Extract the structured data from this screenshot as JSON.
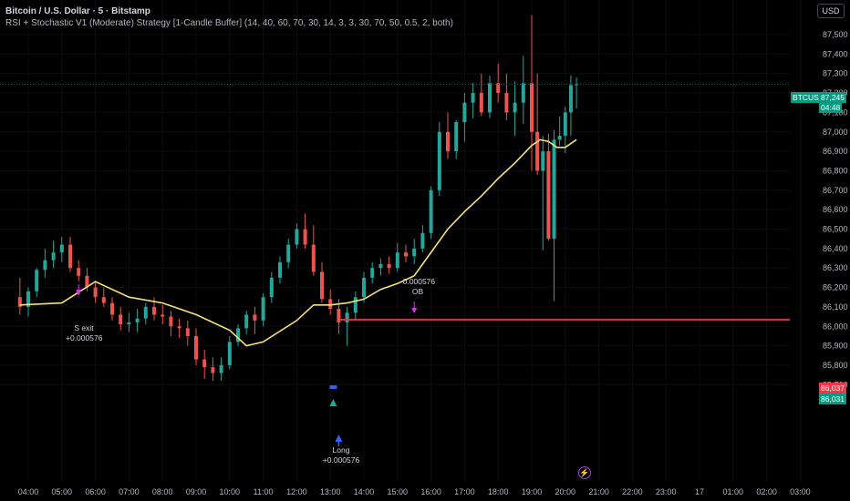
{
  "header": {
    "symbol_title": "Bitcoin / U.S. Dollar · 5 · Bitstamp",
    "strategy_line": "RSI + Stochastic V1 (Moderate) Strategy [1-Candle Buffer] (14, 40, 60, 70, 30, 14, 3, 3, 30, 70, 50, 0.5, 2, both)"
  },
  "currency_label": "USD",
  "price_axis": [
    "87,500",
    "87,400",
    "87,300",
    "87,200",
    "87,100",
    "87,000",
    "86,900",
    "86,800",
    "86,700",
    "86,600",
    "86,500",
    "86,400",
    "86,300",
    "86,200",
    "86,100",
    "86,000",
    "85,900",
    "85,800",
    "85,700"
  ],
  "time_axis": [
    "04:00",
    "05:00",
    "06:00",
    "07:00",
    "08:00",
    "09:00",
    "10:00",
    "11:00",
    "12:00",
    "13:00",
    "14:00",
    "15:00",
    "16:00",
    "17:00",
    "18:00",
    "19:00",
    "20:00",
    "21:00",
    "22:00",
    "23:00",
    "17",
    "01:00",
    "02:00",
    "03:00"
  ],
  "tags": {
    "symbol": "BTCUSD",
    "last_price": "87,245",
    "countdown": "04:48",
    "line_price_red": "86,037",
    "line_price_green": "86,031"
  },
  "annotations": {
    "short_exit_label": "S exit",
    "short_exit_value": "+0.000576",
    "ob_value": "-0.000576",
    "ob_label": "OB",
    "long_label": "Long",
    "long_value": "+0.000576"
  },
  "colors": {
    "background": "#000000",
    "up_candle": "#26a69a",
    "down_candle": "#ef5350",
    "moving_average": "#f7e27a",
    "last_price_tag": "#089981",
    "price_line_red": "#f23645",
    "price_line_green": "#089981",
    "marker_magenta": "#d53ae0",
    "marker_blue": "#2962ff"
  },
  "icons": {
    "short_marker": "arrow-down-icon",
    "long_marker": "arrow-up-icon",
    "entry_marker": "triangle-up-icon",
    "replay": "lightning-icon"
  },
  "chart_data": {
    "type": "candlestick",
    "x": [
      "03:45",
      "04:00",
      "04:15",
      "04:30",
      "04:45",
      "05:00",
      "05:15",
      "05:30",
      "05:45",
      "06:00",
      "06:15",
      "06:30",
      "06:45",
      "07:00",
      "07:15",
      "07:30",
      "07:45",
      "08:00",
      "08:15",
      "08:30",
      "08:45",
      "09:00",
      "09:15",
      "09:30",
      "09:45",
      "10:00",
      "10:15",
      "10:30",
      "10:45",
      "11:00",
      "11:15",
      "11:30",
      "11:45",
      "12:00",
      "12:15",
      "12:30",
      "12:45",
      "13:00",
      "13:15",
      "13:30",
      "13:45",
      "14:00",
      "14:15",
      "14:30",
      "14:45",
      "15:00",
      "15:15",
      "15:30",
      "15:45",
      "16:00",
      "16:15",
      "16:30",
      "16:45",
      "17:00",
      "17:15",
      "17:30",
      "17:45",
      "18:00",
      "18:15",
      "18:30",
      "18:45",
      "19:00",
      "19:10",
      "19:20",
      "19:30",
      "19:40",
      "19:50",
      "20:00",
      "20:10",
      "20:20"
    ],
    "open": [
      86150,
      86100,
      86180,
      86290,
      86340,
      86380,
      86420,
      86300,
      86260,
      86200,
      86150,
      86120,
      86060,
      86010,
      86020,
      86040,
      86100,
      86060,
      86050,
      86000,
      85990,
      85950,
      85830,
      85790,
      85760,
      85800,
      85920,
      85990,
      86060,
      86030,
      86150,
      86250,
      86330,
      86420,
      86500,
      86420,
      86280,
      86140,
      86090,
      86020,
      86070,
      86150,
      86250,
      86300,
      86320,
      86300,
      86380,
      86360,
      86400,
      86480,
      86700,
      87000,
      86900,
      87050,
      87150,
      87200,
      87100,
      87250,
      87200,
      87100,
      87150,
      87250,
      87000,
      86800,
      86900,
      86450,
      86960,
      86980,
      87100,
      87240
    ],
    "high": [
      86250,
      86200,
      86300,
      86400,
      86440,
      86460,
      86460,
      86340,
      86300,
      86230,
      86200,
      86150,
      86100,
      86070,
      86090,
      86120,
      86150,
      86110,
      86080,
      86040,
      86030,
      85990,
      85880,
      85840,
      85840,
      85950,
      86010,
      86080,
      86100,
      86170,
      86280,
      86360,
      86450,
      86530,
      86580,
      86520,
      86330,
      86190,
      86140,
      86100,
      86180,
      86280,
      86330,
      86350,
      86360,
      86430,
      86420,
      86450,
      86520,
      86720,
      87050,
      87100,
      87060,
      87200,
      87250,
      87300,
      87290,
      87350,
      87300,
      87260,
      87390,
      87600,
      87300,
      86980,
      86990,
      87010,
      87080,
      87130,
      87290,
      87280
    ],
    "low": [
      86060,
      86050,
      86150,
      86250,
      86300,
      86330,
      86280,
      86230,
      86180,
      86120,
      86100,
      86030,
      85980,
      85970,
      85970,
      86010,
      86030,
      86010,
      85950,
      85940,
      85900,
      85800,
      85730,
      85720,
      85720,
      85780,
      85900,
      85960,
      85960,
      86000,
      86120,
      86220,
      86300,
      86400,
      86400,
      86260,
      86120,
      86060,
      85960,
      85900,
      86030,
      86120,
      86220,
      86260,
      86270,
      86280,
      86330,
      86320,
      86380,
      86450,
      86670,
      86860,
      86860,
      86950,
      87070,
      87080,
      87070,
      87150,
      87060,
      86980,
      87040,
      86800,
      86780,
      86390,
      86440,
      86130,
      86930,
      86890,
      86980,
      87120
    ],
    "close": [
      86100,
      86180,
      86290,
      86340,
      86380,
      86420,
      86300,
      86260,
      86200,
      86150,
      86120,
      86060,
      86010,
      86020,
      86040,
      86100,
      86060,
      86050,
      86000,
      85990,
      85950,
      85830,
      85790,
      85760,
      85800,
      85920,
      85990,
      86060,
      86030,
      86150,
      86250,
      86330,
      86420,
      86500,
      86420,
      86280,
      86140,
      86090,
      86020,
      86070,
      86150,
      86250,
      86300,
      86320,
      86300,
      86380,
      86360,
      86400,
      86480,
      86700,
      87000,
      86900,
      87050,
      87150,
      87200,
      87100,
      87250,
      87200,
      87100,
      87150,
      87250,
      87000,
      86800,
      86900,
      86450,
      86960,
      86980,
      87100,
      87240,
      87245
    ]
  },
  "ma_data": {
    "x": [
      "03:45",
      "05:00",
      "06:00",
      "07:00",
      "08:00",
      "09:00",
      "10:00",
      "10:30",
      "11:00",
      "12:00",
      "12:30",
      "13:00",
      "13:30",
      "14:00",
      "14:30",
      "15:00",
      "15:30",
      "16:00",
      "16:30",
      "17:00",
      "17:30",
      "18:00",
      "18:30",
      "19:00",
      "19:15",
      "19:30",
      "19:45",
      "20:00",
      "20:20"
    ],
    "y": [
      86110,
      86120,
      86230,
      86150,
      86120,
      86060,
      85980,
      85900,
      85920,
      86030,
      86110,
      86110,
      86120,
      86140,
      86190,
      86220,
      86260,
      86380,
      86500,
      86590,
      86670,
      86760,
      86840,
      86930,
      86960,
      86950,
      86920,
      86920,
      86960
    ]
  }
}
